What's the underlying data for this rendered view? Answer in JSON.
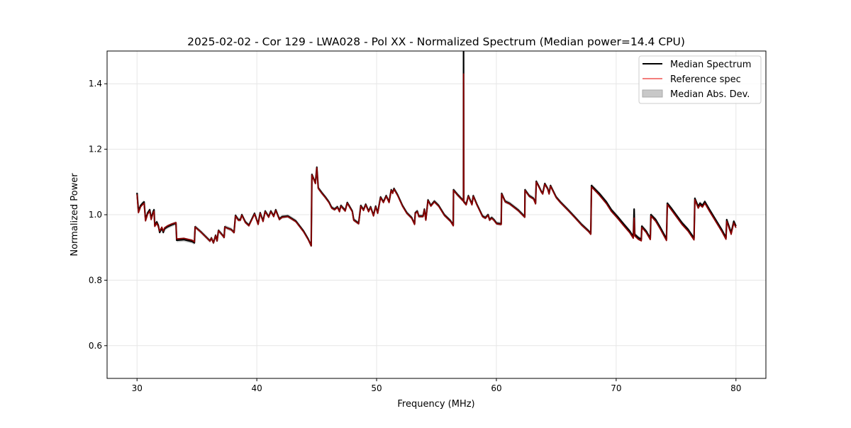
{
  "chart_data": {
    "type": "line",
    "title": "2025-02-02 - Cor 129 - LWA028 - Pol XX - Normalized Spectrum (Median power=14.4 CPU)",
    "xlabel": "Frequency (MHz)",
    "ylabel": "Normalized Power",
    "xlim": [
      27.5,
      82.5
    ],
    "ylim": [
      0.5,
      1.5
    ],
    "xticks": [
      30,
      40,
      50,
      60,
      70,
      80
    ],
    "yticks": [
      0.6,
      0.8,
      1.0,
      1.2,
      1.4
    ],
    "ytick_labels": [
      "0.6",
      "0.8",
      "1.0",
      "1.2",
      "1.4"
    ],
    "grid": true,
    "legend_position": "top-right",
    "legend": [
      {
        "label": "Median Spectrum",
        "color": "#000000",
        "kind": "line"
      },
      {
        "label": "Reference spec",
        "color": "#ef5350",
        "kind": "line"
      },
      {
        "label": "Median Abs. Dev.",
        "color": "#c8c8c8",
        "kind": "patch"
      }
    ],
    "mad": 0.006,
    "colors": {
      "median": "#000000",
      "reference": "#8b0000",
      "reference_legend": "#ef5350",
      "mad": "#b0b0b0",
      "grid": "#e6e6e6"
    },
    "series_columns": [
      "frequency_mhz",
      "median",
      "reference"
    ],
    "points": [
      [
        30.0,
        1.067,
        1.062
      ],
      [
        30.12,
        1.011,
        1.006
      ],
      [
        30.3,
        1.028,
        1.024
      ],
      [
        30.47,
        1.035,
        1.031
      ],
      [
        30.59,
        1.039,
        1.035
      ],
      [
        30.71,
        0.985,
        0.981
      ],
      [
        30.89,
        1.006,
        1.002
      ],
      [
        31.06,
        1.015,
        1.011
      ],
      [
        31.18,
        0.989,
        0.985
      ],
      [
        31.36,
        1.011,
        1.007
      ],
      [
        31.42,
        1.015,
        1.011
      ],
      [
        31.48,
        0.968,
        0.964
      ],
      [
        31.65,
        0.978,
        0.974
      ],
      [
        31.77,
        0.968,
        0.964
      ],
      [
        31.89,
        0.946,
        0.95
      ],
      [
        32.07,
        0.959,
        0.962
      ],
      [
        32.19,
        0.946,
        0.95
      ],
      [
        32.3,
        0.957,
        0.96
      ],
      [
        32.54,
        0.963,
        0.966
      ],
      [
        32.84,
        0.968,
        0.971
      ],
      [
        33.25,
        0.974,
        0.976
      ],
      [
        33.31,
        0.922,
        0.926
      ],
      [
        33.9,
        0.924,
        0.928
      ],
      [
        34.61,
        0.918,
        0.922
      ],
      [
        34.79,
        0.914,
        0.917
      ],
      [
        34.85,
        0.963,
        0.962
      ],
      [
        35.32,
        0.948,
        0.947
      ],
      [
        35.79,
        0.931,
        0.93
      ],
      [
        36.09,
        0.92,
        0.919
      ],
      [
        36.21,
        0.929,
        0.928
      ],
      [
        36.38,
        0.914,
        0.914
      ],
      [
        36.56,
        0.937,
        0.936
      ],
      [
        36.68,
        0.92,
        0.92
      ],
      [
        36.8,
        0.952,
        0.951
      ],
      [
        37.15,
        0.937,
        0.936
      ],
      [
        37.27,
        0.931,
        0.93
      ],
      [
        37.33,
        0.963,
        0.962
      ],
      [
        37.57,
        0.959,
        0.958
      ],
      [
        37.86,
        0.955,
        0.954
      ],
      [
        38.1,
        0.946,
        0.945
      ],
      [
        38.22,
        0.998,
        0.996
      ],
      [
        38.45,
        0.985,
        0.983
      ],
      [
        38.63,
        0.985,
        0.983
      ],
      [
        38.75,
        1.0,
        0.998
      ],
      [
        39.04,
        0.978,
        0.976
      ],
      [
        39.34,
        0.968,
        0.966
      ],
      [
        39.81,
        1.004,
        1.002
      ],
      [
        40.11,
        0.972,
        0.97
      ],
      [
        40.28,
        1.006,
        1.004
      ],
      [
        40.52,
        0.981,
        0.979
      ],
      [
        40.7,
        1.011,
        1.009
      ],
      [
        40.99,
        0.994,
        0.992
      ],
      [
        41.17,
        1.011,
        1.009
      ],
      [
        41.41,
        0.996,
        0.994
      ],
      [
        41.58,
        1.015,
        1.013
      ],
      [
        41.88,
        0.987,
        0.985
      ],
      [
        42.12,
        0.994,
        0.992
      ],
      [
        42.59,
        0.996,
        0.994
      ],
      [
        43.25,
        0.981,
        0.979
      ],
      [
        43.9,
        0.95,
        0.948
      ],
      [
        44.3,
        0.925,
        0.923
      ],
      [
        44.54,
        0.905,
        0.905
      ],
      [
        44.6,
        1.123,
        1.121
      ],
      [
        44.89,
        1.097,
        1.095
      ],
      [
        45.01,
        1.145,
        1.143
      ],
      [
        45.13,
        1.082,
        1.08
      ],
      [
        45.43,
        1.067,
        1.065
      ],
      [
        45.72,
        1.054,
        1.052
      ],
      [
        46.02,
        1.039,
        1.037
      ],
      [
        46.25,
        1.022,
        1.02
      ],
      [
        46.49,
        1.017,
        1.015
      ],
      [
        46.73,
        1.024,
        1.022
      ],
      [
        46.9,
        1.011,
        1.009
      ],
      [
        47.02,
        1.028,
        1.026
      ],
      [
        47.38,
        1.013,
        1.011
      ],
      [
        47.55,
        1.037,
        1.035
      ],
      [
        47.73,
        1.026,
        1.024
      ],
      [
        47.97,
        1.011,
        1.009
      ],
      [
        48.09,
        0.985,
        0.983
      ],
      [
        48.5,
        0.974,
        0.972
      ],
      [
        48.68,
        1.028,
        1.026
      ],
      [
        48.91,
        1.015,
        1.013
      ],
      [
        49.09,
        1.032,
        1.03
      ],
      [
        49.33,
        1.011,
        1.009
      ],
      [
        49.5,
        1.024,
        1.022
      ],
      [
        49.74,
        0.998,
        0.996
      ],
      [
        49.92,
        1.026,
        1.024
      ],
      [
        50.09,
        1.006,
        1.004
      ],
      [
        50.33,
        1.054,
        1.052
      ],
      [
        50.57,
        1.039,
        1.037
      ],
      [
        50.8,
        1.058,
        1.056
      ],
      [
        51.04,
        1.039,
        1.037
      ],
      [
        51.22,
        1.076,
        1.074
      ],
      [
        51.34,
        1.067,
        1.065
      ],
      [
        51.45,
        1.08,
        1.078
      ],
      [
        51.75,
        1.061,
        1.059
      ],
      [
        52.16,
        1.028,
        1.026
      ],
      [
        52.52,
        1.006,
        1.004
      ],
      [
        52.93,
        0.991,
        0.989
      ],
      [
        53.17,
        0.972,
        0.97
      ],
      [
        53.23,
        1.006,
        1.004
      ],
      [
        53.4,
        1.011,
        1.009
      ],
      [
        53.52,
        0.996,
        0.994
      ],
      [
        53.88,
        0.996,
        0.994
      ],
      [
        53.99,
        1.017,
        1.015
      ],
      [
        54.11,
        0.985,
        0.983
      ],
      [
        54.29,
        1.045,
        1.043
      ],
      [
        54.53,
        1.028,
        1.026
      ],
      [
        54.82,
        1.041,
        1.039
      ],
      [
        55.18,
        1.028,
        1.026
      ],
      [
        55.65,
        1.0,
        0.998
      ],
      [
        56.18,
        0.981,
        0.979
      ],
      [
        56.4,
        0.968,
        0.966
      ],
      [
        56.42,
        1.076,
        1.074
      ],
      [
        56.77,
        1.061,
        1.059
      ],
      [
        57.19,
        1.045,
        1.043
      ],
      [
        57.25,
        1.043,
        1.041
      ],
      [
        57.26,
        1.5,
        1.43
      ],
      [
        57.28,
        1.04,
        1.038
      ],
      [
        57.48,
        1.032,
        1.03
      ],
      [
        57.66,
        1.058,
        1.056
      ],
      [
        57.96,
        1.032,
        1.03
      ],
      [
        58.07,
        1.058,
        1.056
      ],
      [
        58.37,
        1.032,
        1.03
      ],
      [
        58.84,
        0.996,
        0.994
      ],
      [
        59.08,
        0.991,
        0.989
      ],
      [
        59.31,
        1.0,
        0.998
      ],
      [
        59.43,
        0.985,
        0.983
      ],
      [
        59.61,
        0.991,
        0.989
      ],
      [
        59.79,
        0.985,
        0.983
      ],
      [
        60.02,
        0.974,
        0.972
      ],
      [
        60.4,
        0.972,
        0.97
      ],
      [
        60.44,
        1.065,
        1.063
      ],
      [
        60.73,
        1.041,
        1.039
      ],
      [
        61.09,
        1.035,
        1.033
      ],
      [
        61.8,
        1.015,
        1.013
      ],
      [
        62.37,
        0.994,
        0.992
      ],
      [
        62.39,
        1.076,
        1.074
      ],
      [
        62.74,
        1.058,
        1.056
      ],
      [
        63.1,
        1.05,
        1.048
      ],
      [
        63.27,
        1.035,
        1.033
      ],
      [
        63.33,
        1.102,
        1.1
      ],
      [
        63.57,
        1.085,
        1.083
      ],
      [
        63.75,
        1.071,
        1.069
      ],
      [
        63.87,
        1.065,
        1.063
      ],
      [
        64.04,
        1.095,
        1.093
      ],
      [
        64.28,
        1.08,
        1.078
      ],
      [
        64.4,
        1.065,
        1.063
      ],
      [
        64.52,
        1.089,
        1.087
      ],
      [
        64.99,
        1.054,
        1.052
      ],
      [
        65.34,
        1.039,
        1.037
      ],
      [
        65.93,
        1.017,
        1.015
      ],
      [
        66.52,
        0.994,
        0.992
      ],
      [
        67.12,
        0.97,
        0.968
      ],
      [
        67.71,
        0.95,
        0.948
      ],
      [
        67.88,
        0.942,
        0.94
      ],
      [
        67.94,
        1.089,
        1.085
      ],
      [
        68.59,
        1.065,
        1.06
      ],
      [
        69.18,
        1.039,
        1.034
      ],
      [
        69.6,
        1.015,
        1.01
      ],
      [
        70.07,
        0.996,
        0.991
      ],
      [
        70.66,
        0.97,
        0.965
      ],
      [
        71.13,
        0.95,
        0.945
      ],
      [
        71.43,
        0.933,
        0.928
      ],
      [
        71.5,
        1.017,
        0.99
      ],
      [
        71.55,
        0.94,
        0.935
      ],
      [
        71.84,
        0.93,
        0.925
      ],
      [
        72.1,
        0.925,
        0.92
      ],
      [
        72.14,
        0.965,
        0.961
      ],
      [
        72.5,
        0.95,
        0.946
      ],
      [
        72.85,
        0.928,
        0.924
      ],
      [
        72.9,
        1.0,
        0.996
      ],
      [
        73.3,
        0.985,
        0.98
      ],
      [
        73.7,
        0.96,
        0.955
      ],
      [
        74.2,
        0.926,
        0.921
      ],
      [
        74.27,
        1.035,
        1.031
      ],
      [
        74.6,
        1.02,
        1.015
      ],
      [
        75.0,
        1.0,
        0.995
      ],
      [
        75.5,
        0.975,
        0.97
      ],
      [
        76.0,
        0.955,
        0.95
      ],
      [
        76.5,
        0.928,
        0.923
      ],
      [
        76.57,
        1.05,
        1.046
      ],
      [
        76.85,
        1.025,
        1.02
      ],
      [
        77.0,
        1.035,
        1.03
      ],
      [
        77.2,
        1.028,
        1.023
      ],
      [
        77.4,
        1.04,
        1.035
      ],
      [
        77.8,
        1.015,
        1.01
      ],
      [
        78.3,
        0.985,
        0.98
      ],
      [
        78.8,
        0.955,
        0.95
      ],
      [
        79.17,
        0.93,
        0.925
      ],
      [
        79.23,
        0.985,
        0.98
      ],
      [
        79.6,
        0.945,
        0.94
      ],
      [
        79.82,
        0.98,
        0.975
      ],
      [
        80.0,
        0.965,
        0.96
      ]
    ]
  }
}
